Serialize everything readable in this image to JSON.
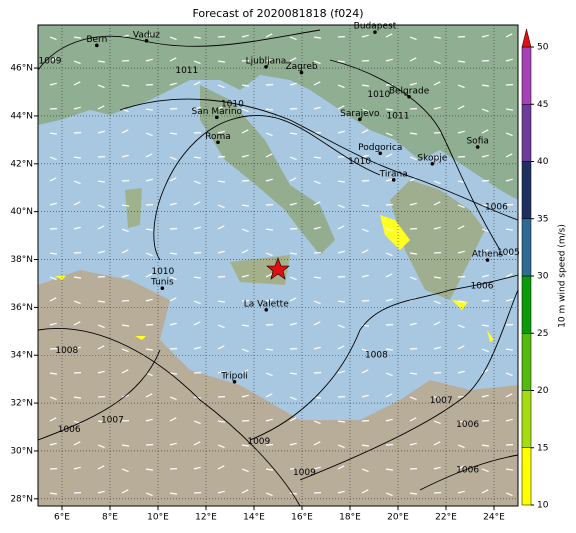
{
  "title": "Forecast of 2020081818 (f024)",
  "map": {
    "lon_range": [
      5,
      25
    ],
    "lat_range": [
      27.7,
      47.8
    ],
    "lon_ticks": [
      {
        "value": 6,
        "label": "6°E"
      },
      {
        "value": 8,
        "label": "8°E"
      },
      {
        "value": 10,
        "label": "10°E"
      },
      {
        "value": 12,
        "label": "12°E"
      },
      {
        "value": 14,
        "label": "14°E"
      },
      {
        "value": 16,
        "label": "16°E"
      },
      {
        "value": 18,
        "label": "18°E"
      },
      {
        "value": 20,
        "label": "20°E"
      },
      {
        "value": 22,
        "label": "22°E"
      },
      {
        "value": 24,
        "label": "24°E"
      }
    ],
    "lat_ticks": [
      {
        "value": 28,
        "label": "28°N"
      },
      {
        "value": 30,
        "label": "30°N"
      },
      {
        "value": 32,
        "label": "32°N"
      },
      {
        "value": 34,
        "label": "34°N"
      },
      {
        "value": 36,
        "label": "36°N"
      },
      {
        "value": 38,
        "label": "38°N"
      },
      {
        "value": 40,
        "label": "40°N"
      },
      {
        "value": 42,
        "label": "42°N"
      },
      {
        "value": 44,
        "label": "44°N"
      },
      {
        "value": 46,
        "label": "46°N"
      }
    ],
    "cities": [
      {
        "name": "Bern",
        "lon": 7.45,
        "lat": 46.95
      },
      {
        "name": "Vaduz",
        "lon": 9.52,
        "lat": 47.14
      },
      {
        "name": "Budapest",
        "lon": 19.04,
        "lat": 47.5
      },
      {
        "name": "Ljubljana",
        "lon": 14.5,
        "lat": 46.05
      },
      {
        "name": "Zagreb",
        "lon": 15.98,
        "lat": 45.81
      },
      {
        "name": "San Marino",
        "lon": 12.45,
        "lat": 43.94
      },
      {
        "name": "Belgrade",
        "lon": 20.46,
        "lat": 44.8
      },
      {
        "name": "Sarajevo",
        "lon": 18.41,
        "lat": 43.86
      },
      {
        "name": "Roma",
        "lon": 12.5,
        "lat": 42.9
      },
      {
        "name": "Podgorica",
        "lon": 19.26,
        "lat": 42.44
      },
      {
        "name": "Skopje",
        "lon": 21.43,
        "lat": 42.0
      },
      {
        "name": "Sofia",
        "lon": 23.32,
        "lat": 42.7
      },
      {
        "name": "Tirana",
        "lon": 19.82,
        "lat": 41.33
      },
      {
        "name": "Athens",
        "lon": 23.73,
        "lat": 37.98
      },
      {
        "name": "Tunis",
        "lon": 10.18,
        "lat": 36.8
      },
      {
        "name": "La Valette",
        "lon": 14.51,
        "lat": 35.9
      },
      {
        "name": "Tripoli",
        "lon": 13.19,
        "lat": 32.89
      }
    ],
    "isobar_labels": [
      {
        "label": 1009,
        "lon": 5.5,
        "lat": 46.3
      },
      {
        "label": 1011,
        "lon": 11.2,
        "lat": 45.9
      },
      {
        "label": 1010,
        "lon": 13.1,
        "lat": 44.5
      },
      {
        "label": 1010,
        "lon": 19.2,
        "lat": 44.9
      },
      {
        "label": 1011,
        "lon": 20.0,
        "lat": 44.0
      },
      {
        "label": 1010,
        "lon": 18.4,
        "lat": 42.1
      },
      {
        "label": 1010,
        "lon": 10.2,
        "lat": 37.5
      },
      {
        "label": 1008,
        "lon": 6.2,
        "lat": 34.2
      },
      {
        "label": 1006,
        "lon": 23.5,
        "lat": 36.9
      },
      {
        "label": 1005,
        "lon": 24.6,
        "lat": 38.3
      },
      {
        "label": 1006,
        "lon": 24.1,
        "lat": 40.2
      },
      {
        "label": 1008,
        "lon": 19.1,
        "lat": 34.0
      },
      {
        "label": 1007,
        "lon": 8.1,
        "lat": 31.3
      },
      {
        "label": 1006,
        "lon": 6.3,
        "lat": 30.9
      },
      {
        "label": 1009,
        "lon": 14.2,
        "lat": 30.4
      },
      {
        "label": 1007,
        "lon": 21.8,
        "lat": 32.1
      },
      {
        "label": 1006,
        "lon": 22.9,
        "lat": 31.1
      },
      {
        "label": 1009,
        "lon": 16.1,
        "lat": 29.1
      },
      {
        "label": 1006,
        "lon": 22.9,
        "lat": 29.2
      }
    ]
  },
  "colorbar": {
    "label": "10 m wind speed (m/s)",
    "ticks": [
      10,
      15,
      20,
      25,
      30,
      35,
      40,
      45,
      50
    ],
    "colors": [
      "#ffff00",
      "#a6dc14",
      "#56b90d",
      "#0a9a0a",
      "#2e6a92",
      "#1d3060",
      "#6c3c9c",
      "#a642b8"
    ],
    "over_color": "#e01010"
  }
}
